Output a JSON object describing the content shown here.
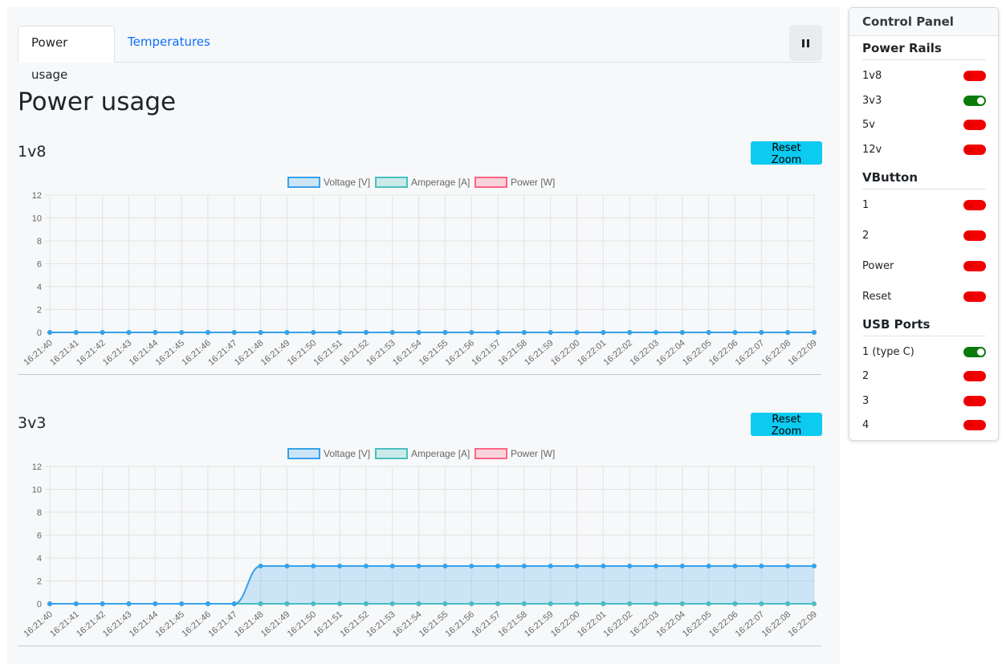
{
  "tabs": [
    {
      "label": "Power usage",
      "active": true
    },
    {
      "label": "Temperatures",
      "active": false
    }
  ],
  "pause_icon": "pause-icon",
  "page_title": "Power usage",
  "reset_zoom_label": "Reset Zoom",
  "colors": {
    "voltage": "#36a2eb",
    "voltage_fill": "rgba(54,162,235,0.22)",
    "amperage": "#4bc0c0",
    "amperage_fill": "rgba(75,192,192,0.25)",
    "power": "#ff6384",
    "power_fill": "rgba(255,99,132,0.25)",
    "accent_cyan": "#0dcaf0",
    "switch_on": "#0b7a0b",
    "switch_off": "#f40000"
  },
  "sections": [
    {
      "title": "1v8",
      "chart_index": 0
    },
    {
      "title": "3v3",
      "chart_index": 1
    }
  ],
  "chart_data": [
    {
      "type": "line",
      "title": "",
      "x": [
        "16:21:40",
        "16:21:41",
        "16:21:42",
        "16:21:43",
        "16:21:44",
        "16:21:45",
        "16:21:46",
        "16:21:47",
        "16:21:48",
        "16:21:49",
        "16:21:50",
        "16:21:51",
        "16:21:52",
        "16:21:53",
        "16:21:54",
        "16:21:55",
        "16:21:56",
        "16:21:57",
        "16:21:58",
        "16:21:59",
        "16:22:00",
        "16:22:01",
        "16:22:02",
        "16:22:03",
        "16:22:04",
        "16:22:05",
        "16:22:06",
        "16:22:07",
        "16:22:08",
        "16:22:09"
      ],
      "series": [
        {
          "name": "Voltage [V]",
          "values": [
            0,
            0,
            0,
            0,
            0,
            0,
            0,
            0,
            0,
            0,
            0,
            0,
            0,
            0,
            0,
            0,
            0,
            0,
            0,
            0,
            0,
            0,
            0,
            0,
            0,
            0,
            0,
            0,
            0,
            0
          ]
        },
        {
          "name": "Amperage [A]",
          "values": [
            0,
            0,
            0,
            0,
            0,
            0,
            0,
            0,
            0,
            0,
            0,
            0,
            0,
            0,
            0,
            0,
            0,
            0,
            0,
            0,
            0,
            0,
            0,
            0,
            0,
            0,
            0,
            0,
            0,
            0
          ]
        },
        {
          "name": "Power [W]",
          "values": [
            0,
            0,
            0,
            0,
            0,
            0,
            0,
            0,
            0,
            0,
            0,
            0,
            0,
            0,
            0,
            0,
            0,
            0,
            0,
            0,
            0,
            0,
            0,
            0,
            0,
            0,
            0,
            0,
            0,
            0
          ]
        }
      ],
      "ylim": [
        0,
        12
      ],
      "y_ticks": [
        0,
        2,
        4,
        6,
        8,
        10,
        12
      ],
      "grid": true,
      "legend": "top-center"
    },
    {
      "type": "line",
      "title": "",
      "x": [
        "16:21:40",
        "16:21:41",
        "16:21:42",
        "16:21:43",
        "16:21:44",
        "16:21:45",
        "16:21:46",
        "16:21:47",
        "16:21:48",
        "16:21:49",
        "16:21:50",
        "16:21:51",
        "16:21:52",
        "16:21:53",
        "16:21:54",
        "16:21:55",
        "16:21:56",
        "16:21:57",
        "16:21:58",
        "16:21:59",
        "16:22:00",
        "16:22:01",
        "16:22:02",
        "16:22:03",
        "16:22:04",
        "16:22:05",
        "16:22:06",
        "16:22:07",
        "16:22:08",
        "16:22:09"
      ],
      "series": [
        {
          "name": "Voltage [V]",
          "values": [
            0,
            0,
            0,
            0,
            0,
            0,
            0,
            0,
            3.3,
            3.3,
            3.3,
            3.3,
            3.3,
            3.3,
            3.3,
            3.3,
            3.3,
            3.3,
            3.3,
            3.3,
            3.3,
            3.3,
            3.3,
            3.3,
            3.3,
            3.3,
            3.3,
            3.3,
            3.3,
            3.3
          ]
        },
        {
          "name": "Amperage [A]",
          "values": [
            0,
            0,
            0,
            0,
            0,
            0,
            0,
            0,
            0,
            0,
            0,
            0,
            0,
            0,
            0,
            0,
            0,
            0,
            0,
            0,
            0,
            0,
            0,
            0,
            0,
            0,
            0,
            0,
            0,
            0
          ]
        },
        {
          "name": "Power [W]",
          "values": [
            0,
            0,
            0,
            0,
            0,
            0,
            0,
            0,
            0,
            0,
            0,
            0,
            0,
            0,
            0,
            0,
            0,
            0,
            0,
            0,
            0,
            0,
            0,
            0,
            0,
            0,
            0,
            0,
            0,
            0
          ]
        }
      ],
      "ylim": [
        0,
        12
      ],
      "y_ticks": [
        0,
        2,
        4,
        6,
        8,
        10,
        12
      ],
      "grid": true,
      "legend": "top-center"
    }
  ],
  "panel": {
    "title": "Control Panel",
    "groups": [
      {
        "title": "Power Rails",
        "items": [
          {
            "label": "1v8",
            "on": false
          },
          {
            "label": "3v3",
            "on": true
          },
          {
            "label": "5v",
            "on": false
          },
          {
            "label": "12v",
            "on": false
          }
        ]
      },
      {
        "title": "VButton",
        "items": [
          {
            "label": "1",
            "on": false
          },
          {
            "label": "2",
            "on": false
          },
          {
            "label": "Power",
            "on": false
          },
          {
            "label": "Reset",
            "on": false
          }
        ]
      },
      {
        "title": "USB Ports",
        "items": [
          {
            "label": "1 (type C)",
            "on": true
          },
          {
            "label": "2",
            "on": false
          },
          {
            "label": "3",
            "on": false
          },
          {
            "label": "4",
            "on": false
          }
        ]
      }
    ]
  }
}
